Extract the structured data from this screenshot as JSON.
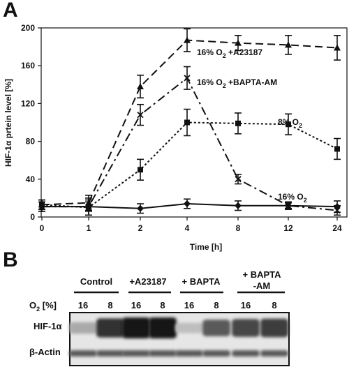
{
  "panel_a_label": "A",
  "panel_b_label": "B",
  "chart_data": {
    "type": "line",
    "x_categories": [
      "0",
      "1",
      "2",
      "4",
      "8",
      "12",
      "24"
    ],
    "xlabel": "Time [h]",
    "ylabel": "HIF-1α prtein level [%]",
    "ylim": [
      0,
      200
    ],
    "yticks": [
      0,
      40,
      80,
      120,
      160,
      200
    ],
    "grid": false,
    "series": [
      {
        "name": "16% O2 +A23187",
        "label_main": "16% O",
        "label_sub": "2",
        "label_tail": " +A23187",
        "marker": "triangle",
        "dash": "dashed",
        "values": [
          13,
          15,
          138,
          187,
          184,
          182,
          179
        ],
        "errors": [
          5,
          8,
          12,
          12,
          8,
          10,
          13
        ]
      },
      {
        "name": "16% O2 +BAPTA-AM",
        "label_main": "16% O",
        "label_sub": "2",
        "label_tail": " +BAPTA-AM",
        "marker": "x",
        "dash": "dash-dot",
        "values": [
          11,
          11,
          108,
          147,
          40,
          12,
          7
        ],
        "errors": [
          5,
          9,
          11,
          12,
          5,
          3,
          5
        ]
      },
      {
        "name": "8% O2",
        "label_main": "8% O",
        "label_sub": "2",
        "label_tail": "",
        "marker": "square",
        "dash": "dotted",
        "values": [
          13,
          10,
          50,
          100,
          99,
          98,
          72
        ],
        "errors": [
          5,
          8,
          11,
          14,
          11,
          11,
          11
        ]
      },
      {
        "name": "16% O2",
        "label_main": "16% O",
        "label_sub": "2",
        "label_tail": "",
        "marker": "diamond",
        "dash": "solid",
        "values": [
          11,
          11,
          9,
          14,
          12,
          12,
          11
        ],
        "errors": [
          5,
          5,
          5,
          5,
          5,
          4,
          6
        ]
      }
    ]
  },
  "blot": {
    "groups": [
      "Control",
      "+A23187",
      "+ BAPTA"
    ],
    "group4_line1": "+ BAPTA",
    "group4_line2": "-AM",
    "o2_label_main": "O",
    "o2_label_sub": "2",
    "o2_label_tail": " [%]",
    "lane_values": [
      "16",
      "8",
      "16",
      "8",
      "16",
      "8",
      "16",
      "8"
    ],
    "hif_label": "HIF-1α",
    "actin_label": "β-Actin",
    "hif_intensity": [
      0.25,
      0.85,
      1.0,
      1.0,
      0.15,
      0.65,
      0.75,
      0.8
    ]
  }
}
